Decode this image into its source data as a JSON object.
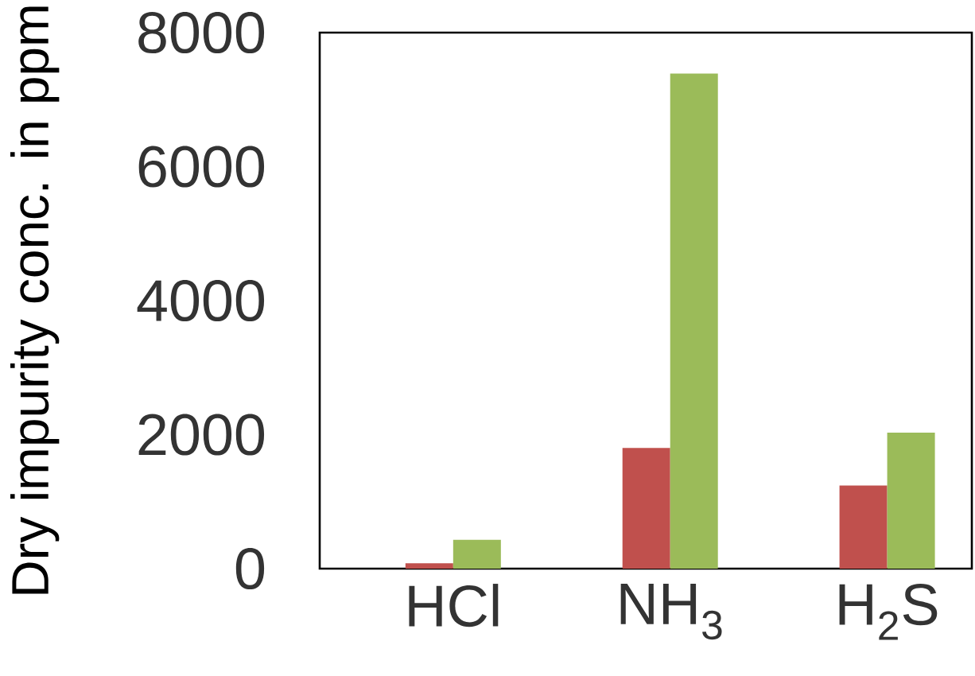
{
  "chart_data": {
    "type": "bar",
    "ylabel": "Dry impurity conc. in ppm",
    "categories": [
      "HCl",
      "NH$_{3}$",
      "H$_{2}$S"
    ],
    "series": [
      {
        "color": "#c0504d",
        "values": [
          80,
          1800,
          1240
        ]
      },
      {
        "color": "#9bbb59",
        "values": [
          430,
          7390,
          2030
        ]
      }
    ],
    "ylim": [
      0,
      8000
    ],
    "yticks": [
      0,
      2000,
      4000,
      6000,
      8000
    ]
  }
}
